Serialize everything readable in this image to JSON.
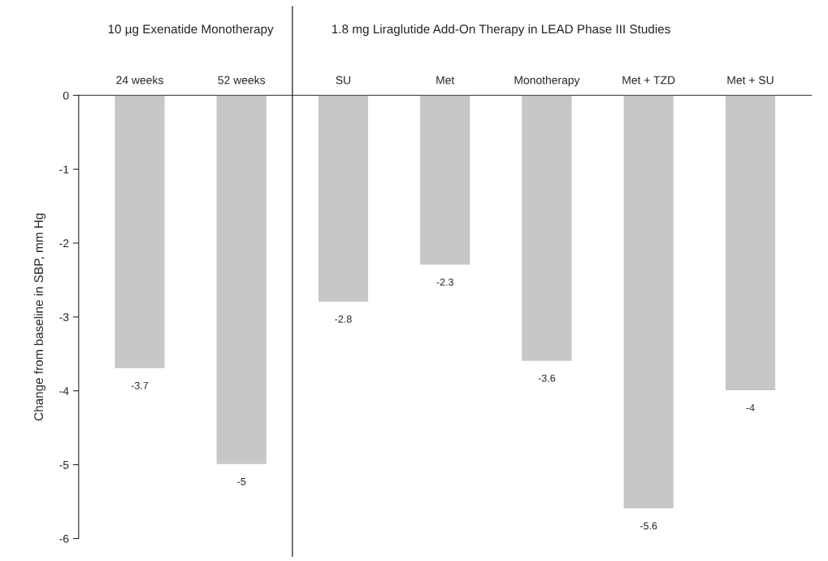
{
  "chart_data": {
    "type": "bar",
    "categories": [
      "24 weeks",
      "52 weeks",
      "SU",
      "Met",
      "Monotherapy",
      "Met + TZD",
      "Met + SU"
    ],
    "values": [
      -3.7,
      -5,
      -2.8,
      -2.3,
      -3.6,
      -5.6,
      -4
    ],
    "color": "#c6c7c9",
    "ylabel": "Change from baseline in SBP, mm Hg",
    "ylim": [
      -6,
      0
    ],
    "yticks": [
      0,
      -1,
      -2,
      -3,
      -4,
      -5,
      -6
    ],
    "data_labels": true,
    "grid": false,
    "legend": false,
    "annotations": [
      "10 µg Exenatide Monotherapy",
      "1.8 mg Liraglutide Add-On Therapy in LEAD Phase III Studies"
    ]
  }
}
